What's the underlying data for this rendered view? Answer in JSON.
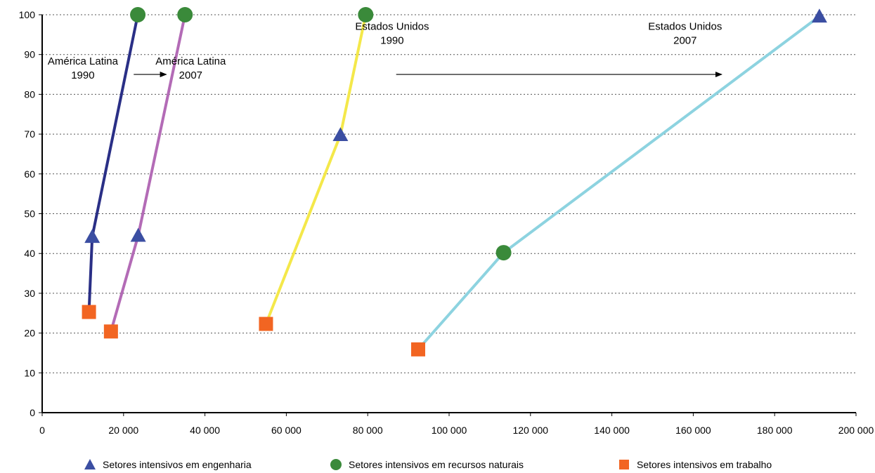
{
  "chart_data": {
    "type": "line",
    "title": "",
    "xlabel": "",
    "ylabel": "",
    "xlim": [
      0,
      200000
    ],
    "ylim": [
      0,
      100
    ],
    "xticks": [
      0,
      20000,
      40000,
      60000,
      80000,
      100000,
      120000,
      140000,
      160000,
      180000,
      200000
    ],
    "xtick_labels": [
      "0",
      "20 000",
      "40 000",
      "60 000",
      "80 000",
      "100 000",
      "120 000",
      "140 000",
      "160 000",
      "180 000",
      "200 000"
    ],
    "yticks": [
      0,
      10,
      20,
      30,
      40,
      50,
      60,
      70,
      80,
      90,
      100
    ],
    "ytick_labels": [
      "0",
      "10",
      "20",
      "30",
      "40",
      "50",
      "60",
      "70",
      "80",
      "90",
      "100"
    ],
    "grid": "horizontal-dotted",
    "legend_position": "bottom",
    "legend": [
      {
        "label": "Setores intensivos em engenharia",
        "marker": "triangle",
        "color": "#3b4ea2"
      },
      {
        "label": "Setores intensivos em recursos naturais",
        "marker": "circle",
        "color": "#3a8a3a"
      },
      {
        "label": "Setores intensivos em trabalho",
        "marker": "square",
        "color": "#f26522"
      }
    ],
    "series": [
      {
        "name": "América Latina 1990",
        "color": "#2a2f86",
        "points": [
          {
            "x": 11500,
            "y": 25.3,
            "marker": "square"
          },
          {
            "x": 12300,
            "y": 44.2,
            "marker": "triangle"
          },
          {
            "x": 23500,
            "y": 100,
            "marker": "circle"
          }
        ]
      },
      {
        "name": "América Latina 2007",
        "color": "#b36bb6",
        "points": [
          {
            "x": 16900,
            "y": 20.4,
            "marker": "square"
          },
          {
            "x": 23600,
            "y": 44.5,
            "marker": "triangle"
          },
          {
            "x": 35100,
            "y": 100,
            "marker": "circle"
          }
        ]
      },
      {
        "name": "Estados Unidos 1990",
        "color": "#f4e84a",
        "points": [
          {
            "x": 55000,
            "y": 22.3,
            "marker": "square"
          },
          {
            "x": 73300,
            "y": 69.8,
            "marker": "triangle"
          },
          {
            "x": 79500,
            "y": 100,
            "marker": "circle"
          }
        ]
      },
      {
        "name": "Estados Unidos 2007",
        "color": "#8dd3e0",
        "points": [
          {
            "x": 92400,
            "y": 15.9,
            "marker": "square"
          },
          {
            "x": 113400,
            "y": 40.2,
            "marker": "circle"
          },
          {
            "x": 191000,
            "y": 99.6,
            "marker": "triangle"
          }
        ]
      }
    ],
    "annotations": [
      {
        "lines": [
          "América Latina",
          "1990"
        ],
        "x": 10000,
        "y": 87.5
      },
      {
        "lines": [
          "América Latina",
          "2007"
        ],
        "x": 36500,
        "y": 87.5
      },
      {
        "lines": [
          "Estados Unidos",
          "1990"
        ],
        "x": 86000,
        "y": 96.2
      },
      {
        "lines": [
          "Estados Unidos",
          "2007"
        ],
        "x": 158000,
        "y": 96.2
      }
    ],
    "arrows": [
      {
        "x1": 22500,
        "y1": 85,
        "x2": 30500,
        "y2": 85
      },
      {
        "x1": 87000,
        "y1": 85,
        "x2": 167000,
        "y2": 85
      }
    ],
    "marker_colors": {
      "triangle": "#3b4ea2",
      "circle": "#3a8a3a",
      "square": "#f26522"
    }
  }
}
